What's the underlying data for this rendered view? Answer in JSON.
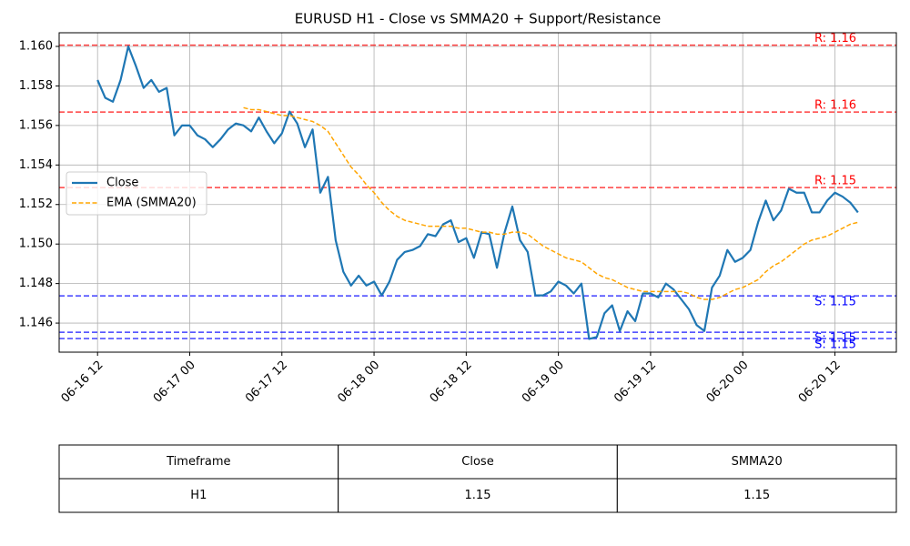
{
  "chart_data": {
    "type": "line",
    "title": "EURUSD H1 - Close vs SMMA20 + Support/Resistance",
    "x": [
      "06-16 12",
      "06-16 13",
      "06-16 14",
      "06-16 15",
      "06-16 16",
      "06-16 17",
      "06-16 18",
      "06-16 19",
      "06-16 20",
      "06-16 21",
      "06-16 22",
      "06-16 23",
      "06-17 00",
      "06-17 01",
      "06-17 02",
      "06-17 03",
      "06-17 04",
      "06-17 05",
      "06-17 06",
      "06-17 07",
      "06-17 08",
      "06-17 09",
      "06-17 10",
      "06-17 11",
      "06-17 12",
      "06-17 13",
      "06-17 14",
      "06-17 15",
      "06-17 16",
      "06-17 17",
      "06-17 18",
      "06-17 19",
      "06-17 20",
      "06-17 21",
      "06-17 22",
      "06-17 23",
      "06-18 00",
      "06-18 01",
      "06-18 02",
      "06-18 03",
      "06-18 04",
      "06-18 05",
      "06-18 06",
      "06-18 07",
      "06-18 08",
      "06-18 09",
      "06-18 10",
      "06-18 11",
      "06-18 12",
      "06-18 13",
      "06-18 14",
      "06-18 15",
      "06-18 16",
      "06-18 17",
      "06-18 18",
      "06-18 19",
      "06-18 20",
      "06-18 21",
      "06-18 22",
      "06-18 23",
      "06-19 00",
      "06-19 01",
      "06-19 02",
      "06-19 03",
      "06-19 04",
      "06-19 05",
      "06-19 06",
      "06-19 07",
      "06-19 08",
      "06-19 09",
      "06-19 10",
      "06-19 11",
      "06-19 12",
      "06-19 13",
      "06-19 14",
      "06-19 15",
      "06-19 16",
      "06-19 17",
      "06-19 18",
      "06-19 19",
      "06-19 20",
      "06-19 21",
      "06-19 22",
      "06-19 23",
      "06-20 00",
      "06-20 01",
      "06-20 02",
      "06-20 03",
      "06-20 04",
      "06-20 05",
      "06-20 06",
      "06-20 07",
      "06-20 08",
      "06-20 09",
      "06-20 10",
      "06-20 11",
      "06-20 12",
      "06-20 13",
      "06-20 14",
      "06-20 15"
    ],
    "series": [
      {
        "name": "Close",
        "color": "#1f77b4",
        "dashed": false,
        "values": [
          1.1583,
          1.1574,
          1.1572,
          1.1583,
          1.16,
          1.159,
          1.1579,
          1.1583,
          1.1577,
          1.1579,
          1.1555,
          1.156,
          1.156,
          1.1555,
          1.1553,
          1.1549,
          1.1553,
          1.1558,
          1.1561,
          1.156,
          1.1557,
          1.1564,
          1.1557,
          1.1551,
          1.1556,
          1.1567,
          1.1561,
          1.1549,
          1.1558,
          1.1526,
          1.1534,
          1.1502,
          1.1486,
          1.1479,
          1.1484,
          1.1479,
          1.1481,
          1.1474,
          1.1481,
          1.1492,
          1.1496,
          1.1497,
          1.1499,
          1.1505,
          1.1504,
          1.151,
          1.1512,
          1.1501,
          1.1503,
          1.1493,
          1.1506,
          1.1505,
          1.1488,
          1.1506,
          1.1519,
          1.1502,
          1.1496,
          1.1474,
          1.1474,
          1.1476,
          1.1481,
          1.1479,
          1.1475,
          1.148,
          1.1452,
          1.1453,
          1.1465,
          1.1469,
          1.1456,
          1.1466,
          1.1461,
          1.1475,
          1.1475,
          1.1473,
          1.148,
          1.1477,
          1.1472,
          1.1467,
          1.1459,
          1.1456,
          1.1478,
          1.1484,
          1.1497,
          1.1491,
          1.1493,
          1.1497,
          1.1511,
          1.1522,
          1.1512,
          1.1517,
          1.1528,
          1.1526,
          1.1526,
          1.1516,
          1.1516,
          1.1522,
          1.1526,
          1.1524,
          1.1521,
          1.1516
        ]
      },
      {
        "name": "EMA (SMMA20)",
        "color": "#ffa500",
        "dashed": true,
        "values": [
          null,
          null,
          null,
          null,
          null,
          null,
          null,
          null,
          null,
          null,
          null,
          null,
          null,
          null,
          null,
          null,
          null,
          null,
          null,
          1.1569,
          1.1568,
          1.1568,
          1.1567,
          1.1566,
          1.1565,
          1.1565,
          1.1564,
          1.1563,
          1.1562,
          1.156,
          1.1557,
          1.1551,
          1.1545,
          1.1539,
          1.1535,
          1.153,
          1.1526,
          1.1521,
          1.1517,
          1.1514,
          1.1512,
          1.1511,
          1.151,
          1.1509,
          1.1509,
          1.1509,
          1.1509,
          1.1508,
          1.1508,
          1.1507,
          1.1506,
          1.1506,
          1.1505,
          1.1505,
          1.1506,
          1.1506,
          1.1505,
          1.1502,
          1.1499,
          1.1497,
          1.1495,
          1.1493,
          1.1492,
          1.1491,
          1.1488,
          1.1485,
          1.1483,
          1.1482,
          1.148,
          1.1478,
          1.1477,
          1.1476,
          1.1476,
          1.1476,
          1.1476,
          1.1476,
          1.1476,
          1.1475,
          1.1473,
          1.1472,
          1.1472,
          1.1473,
          1.1475,
          1.1477,
          1.1478,
          1.148,
          1.1482,
          1.1486,
          1.1489,
          1.1491,
          1.1494,
          1.1497,
          1.15,
          1.1502,
          1.1503,
          1.1504,
          1.1506,
          1.1508,
          1.151,
          1.1511
        ]
      }
    ],
    "levels": [
      {
        "label": "R: 1.16",
        "value": 1.16006,
        "color": "#ff0000"
      },
      {
        "label": "R: 1.16",
        "value": 1.15668,
        "color": "#ff0000"
      },
      {
        "label": "R: 1.15",
        "value": 1.15286,
        "color": "#ff0000"
      },
      {
        "label": "S: 1.15",
        "value": 1.14738,
        "color": "#0000ff"
      },
      {
        "label": "S: 1.15",
        "value": 1.14554,
        "color": "#0000ff"
      },
      {
        "label": "S: 1.15",
        "value": 1.14522,
        "color": "#0000ff"
      }
    ],
    "xlim": [
      "06-16 07",
      "06-20 20"
    ],
    "xticks": [
      "06-16 12",
      "06-17 00",
      "06-17 12",
      "06-18 00",
      "06-18 12",
      "06-19 00",
      "06-19 12",
      "06-20 00",
      "06-20 12"
    ],
    "ylim": [
      1.14453,
      1.16069
    ],
    "yticks": [
      1.146,
      1.148,
      {
        "value": 1.15,
        "label": "1.150"
      },
      1.152,
      1.154,
      1.156,
      1.158,
      {
        "value": 1.16,
        "label": "1.160"
      }
    ],
    "grid": true,
    "legend": "upper left"
  },
  "table": {
    "header": [
      "Timeframe",
      "Close",
      "SMMA20"
    ],
    "rows": [
      [
        "H1",
        "1.15",
        "1.15"
      ]
    ]
  }
}
